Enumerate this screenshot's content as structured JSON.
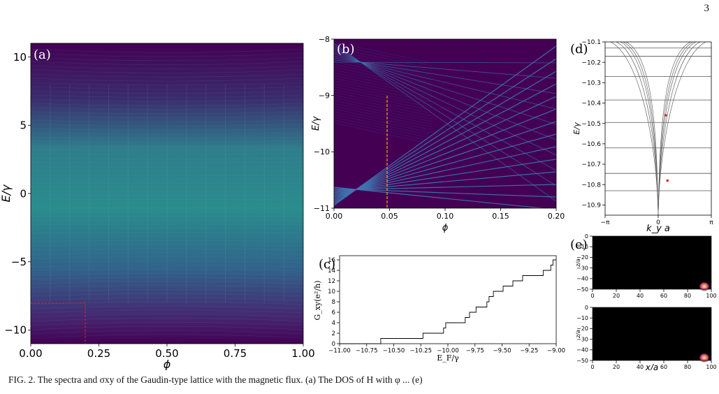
{
  "page_number": "3",
  "caption": "FIG. 2. The spectra and σxy of the Gaudin-type lattice with the magnetic flux. (a) The DOS of H with φ ... (e)",
  "colors": {
    "background": "#440154",
    "mid": "#2a8c8c",
    "line": "#3d78b0",
    "marker": "#d62728",
    "dash": "#ffa500"
  },
  "panel_a": {
    "tag": "(a)",
    "xlabel": "ϕ",
    "ylabel": "E/γ",
    "xticks": [
      "0.00",
      "0.25",
      "0.50",
      "0.75",
      "1.00"
    ],
    "yticks": [
      "10",
      "5",
      "0",
      "−5",
      "−10"
    ]
  },
  "panel_b": {
    "tag": "(b)",
    "xlabel": "ϕ",
    "ylabel": "E/γ",
    "xticks": [
      "0.00",
      "0.05",
      "0.10",
      "0.15",
      "0.20"
    ],
    "yticks": [
      "−8",
      "−9",
      "−10",
      "−11"
    ]
  },
  "panel_c": {
    "tag": "(c)",
    "xlabel": "E_F/γ",
    "ylabel": "G_xy(e²/h)",
    "xticks": [
      "−11.00",
      "−10.75",
      "−10.50",
      "−10.25",
      "−10.00",
      "−9.75",
      "−9.50",
      "−9.25",
      "−9.00"
    ],
    "yticks": [
      "0",
      "2",
      "4",
      "6",
      "8",
      "10",
      "12",
      "14",
      "16"
    ]
  },
  "panel_d": {
    "tag": "(d)",
    "xlabel": "k_y a",
    "ylabel": "E/γ",
    "xticks": [
      "−π",
      "0",
      "π"
    ],
    "yticks": [
      "−10.1",
      "−10.2",
      "−10.3",
      "−10.4",
      "−10.5",
      "−10.6",
      "−10.7",
      "−10.8",
      "−10.9"
    ]
  },
  "panel_e": {
    "tag": "(e)",
    "xlabel": "x/a",
    "ylabel": "z/a",
    "xticks": [
      "0",
      "20",
      "40",
      "60",
      "80",
      "100"
    ],
    "yticks": [
      "0",
      "−10",
      "−20",
      "−30",
      "−40",
      "−50"
    ]
  },
  "chart_data": [
    {
      "type": "heatmap",
      "title": "(a)",
      "xlabel": "ϕ",
      "ylabel": "E/γ",
      "xlim": [
        0,
        1
      ],
      "ylim": [
        -11,
        11
      ],
      "description_values": {
        "highlighted_region": {
          "x": [
            0,
            0.2
          ],
          "y": [
            -11,
            -8
          ]
        }
      }
    },
    {
      "type": "heatmap",
      "title": "(b)",
      "xlabel": "ϕ",
      "ylabel": "E/γ",
      "xlim": [
        0,
        0.2
      ],
      "ylim": [
        -11,
        -8
      ],
      "cut_at_phi": 0.048
    },
    {
      "type": "line",
      "title": "(c)",
      "xlabel": "E_F/γ",
      "ylabel": "G_xy(e²/h)",
      "xlim": [
        -11,
        -9
      ],
      "ylim": [
        0,
        16
      ],
      "x": [
        -11.0,
        -10.62,
        -10.62,
        -10.23,
        -10.23,
        -10.04,
        -10.04,
        -10.02,
        -10.02,
        -9.84,
        -9.84,
        -9.8,
        -9.8,
        -9.74,
        -9.74,
        -9.64,
        -9.64,
        -9.62,
        -9.62,
        -9.58,
        -9.58,
        -9.52,
        -9.52,
        -9.49,
        -9.49,
        -9.4,
        -9.4,
        -9.31,
        -9.31,
        -9.23,
        -9.23,
        -9.12,
        -9.12,
        -9.05,
        -9.05,
        -9.03,
        -9.03,
        -9.0
      ],
      "y": [
        0,
        0,
        1,
        1,
        2,
        2,
        3,
        3,
        4,
        4,
        5,
        5,
        6,
        6,
        7,
        7,
        8,
        8,
        9,
        9,
        10,
        10,
        10,
        10,
        11,
        11,
        12,
        12,
        13,
        13,
        13,
        13,
        14,
        14,
        15,
        15,
        16,
        16
      ]
    },
    {
      "type": "line",
      "title": "(d)",
      "xlabel": "k_y a",
      "ylabel": "E/γ",
      "xlim": [
        -3.1416,
        3.1416
      ],
      "ylim": [
        -10.95,
        -10.1
      ],
      "flat_levels": [
        -10.13,
        -10.17,
        -10.27,
        -10.385,
        -10.495,
        -10.62,
        -10.745,
        -10.83
      ],
      "marked_points": [
        {
          "x": 0.45,
          "y": -10.46
        },
        {
          "x": 0.55,
          "y": -10.78
        }
      ]
    },
    {
      "type": "heatmap",
      "title": "(e)",
      "xlabel": "x/a",
      "ylabel": "z/a",
      "xlim": [
        0,
        100
      ],
      "ylim": [
        -50,
        0
      ],
      "peak": {
        "x": 95,
        "z": -47
      }
    }
  ]
}
